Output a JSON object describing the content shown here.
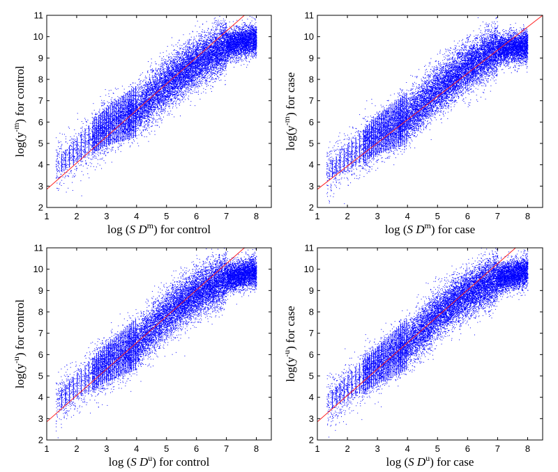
{
  "chart_data": [
    {
      "type": "scatter",
      "marker_color": "#0000ff",
      "line_color": "#ff0000",
      "xlim": [
        1,
        8.5
      ],
      "ylim": [
        2,
        11
      ],
      "x_ticks": [
        "1",
        "2",
        "3",
        "4",
        "5",
        "6",
        "7",
        "8"
      ],
      "y_ticks": [
        "2",
        "3",
        "4",
        "5",
        "6",
        "7",
        "8",
        "9",
        "10",
        "11"
      ],
      "xlabel": {
        "prefix": "log (",
        "sym": "S D",
        "sup": "m",
        "suffix": ") for control"
      },
      "ylabel": {
        "prefix": "log(y",
        "sup": "-m",
        "suffix": ") for control"
      },
      "reference_line": {
        "x": [
          1,
          7.6
        ],
        "y": [
          2.85,
          11
        ]
      },
      "trend_points": [
        {
          "x": 1.5,
          "y": 4.1
        },
        {
          "x": 3,
          "y": 5.8
        },
        {
          "x": 4,
          "y": 6.5
        },
        {
          "x": 5,
          "y": 7.8
        },
        {
          "x": 6,
          "y": 8.8
        },
        {
          "x": 7,
          "y": 9.6
        },
        {
          "x": 8,
          "y": 9.9
        }
      ]
    },
    {
      "type": "scatter",
      "marker_color": "#0000ff",
      "line_color": "#ff0000",
      "xlim": [
        1,
        8.5
      ],
      "ylim": [
        2,
        11
      ],
      "x_ticks": [
        "1",
        "2",
        "3",
        "4",
        "5",
        "6",
        "7",
        "8"
      ],
      "y_ticks": [
        "2",
        "3",
        "4",
        "5",
        "6",
        "7",
        "8",
        "9",
        "10",
        "11"
      ],
      "xlabel": {
        "prefix": "log (",
        "sym": "S D",
        "sup": "m",
        "suffix": ") for case"
      },
      "ylabel": {
        "prefix": "log(y",
        "sup": "-m",
        "suffix": ") for case"
      },
      "reference_line": {
        "x": [
          1,
          8.5
        ],
        "y": [
          2.85,
          11
        ]
      },
      "trend_points": [
        {
          "x": 1.5,
          "y": 3.8
        },
        {
          "x": 3,
          "y": 5.4
        },
        {
          "x": 4,
          "y": 6.2
        },
        {
          "x": 5,
          "y": 7.5
        },
        {
          "x": 6,
          "y": 8.6
        },
        {
          "x": 7,
          "y": 9.4
        },
        {
          "x": 8,
          "y": 9.6
        }
      ]
    },
    {
      "type": "scatter",
      "marker_color": "#0000ff",
      "line_color": "#ff0000",
      "xlim": [
        1,
        8.5
      ],
      "ylim": [
        2,
        11
      ],
      "x_ticks": [
        "1",
        "2",
        "3",
        "4",
        "5",
        "6",
        "7",
        "8"
      ],
      "y_ticks": [
        "2",
        "3",
        "4",
        "5",
        "6",
        "7",
        "8",
        "9",
        "10",
        "11"
      ],
      "xlabel": {
        "prefix": "log (",
        "sym": "S D",
        "sup": "u",
        "suffix": ") for control"
      },
      "ylabel": {
        "prefix": "log(y",
        "sup": "-u",
        "suffix": ") for control"
      },
      "reference_line": {
        "x": [
          1,
          7.6
        ],
        "y": [
          2.85,
          11
        ]
      },
      "trend_points": [
        {
          "x": 1.5,
          "y": 4.0
        },
        {
          "x": 3,
          "y": 5.6
        },
        {
          "x": 4,
          "y": 6.5
        },
        {
          "x": 5,
          "y": 7.9
        },
        {
          "x": 6,
          "y": 8.9
        },
        {
          "x": 7,
          "y": 9.6
        },
        {
          "x": 8,
          "y": 9.9
        }
      ]
    },
    {
      "type": "scatter",
      "marker_color": "#0000ff",
      "line_color": "#ff0000",
      "xlim": [
        1,
        8.5
      ],
      "ylim": [
        2,
        11
      ],
      "x_ticks": [
        "1",
        "2",
        "3",
        "4",
        "5",
        "6",
        "7",
        "8"
      ],
      "y_ticks": [
        "2",
        "3",
        "4",
        "5",
        "6",
        "7",
        "8",
        "9",
        "10",
        "11"
      ],
      "xlabel": {
        "prefix": "log (",
        "sym": "S D",
        "sup": "u",
        "suffix": ") for case"
      },
      "ylabel": {
        "prefix": "log(y",
        "sup": "-u",
        "suffix": ") for case"
      },
      "reference_line": {
        "x": [
          1,
          7.6
        ],
        "y": [
          2.85,
          11
        ]
      },
      "trend_points": [
        {
          "x": 1.5,
          "y": 3.9
        },
        {
          "x": 3,
          "y": 5.5
        },
        {
          "x": 4,
          "y": 6.5
        },
        {
          "x": 5,
          "y": 7.9
        },
        {
          "x": 6,
          "y": 8.9
        },
        {
          "x": 7,
          "y": 9.6
        },
        {
          "x": 8,
          "y": 9.9
        }
      ]
    }
  ]
}
